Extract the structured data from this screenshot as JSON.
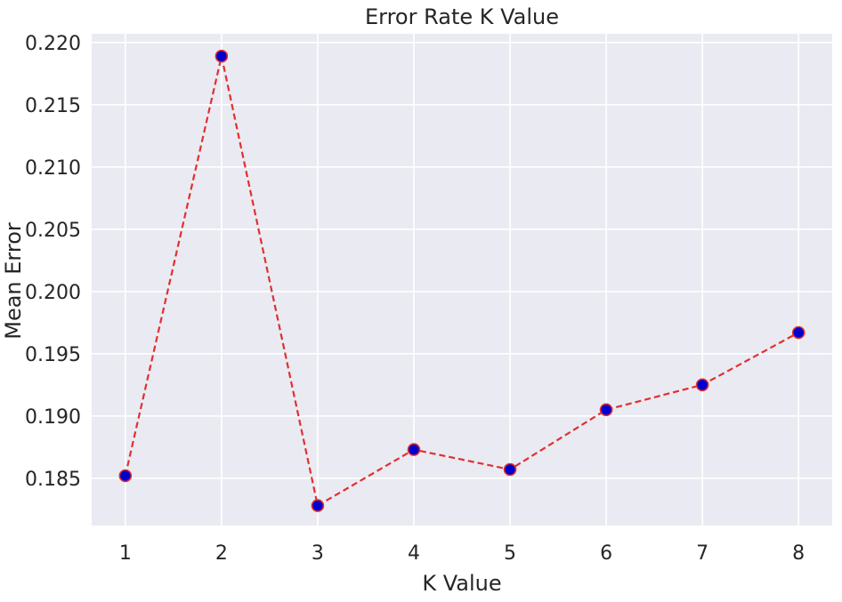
{
  "chart_data": {
    "type": "line",
    "title": "Error Rate K Value",
    "xlabel": "K Value",
    "ylabel": "Mean Error",
    "x": [
      1,
      2,
      3,
      4,
      5,
      6,
      7,
      8
    ],
    "y": [
      0.1852,
      0.2189,
      0.1828,
      0.1873,
      0.1857,
      0.1905,
      0.1925,
      0.1967
    ],
    "xticks": [
      "1",
      "2",
      "3",
      "4",
      "5",
      "6",
      "7",
      "8"
    ],
    "yticks": [
      "0.185",
      "0.190",
      "0.195",
      "0.200",
      "0.205",
      "0.210",
      "0.215",
      "0.220"
    ],
    "xlim": [
      0.65,
      8.35
    ],
    "ylim": [
      0.1812,
      0.2207
    ],
    "grid": true,
    "line_style": "dashed",
    "colors": {
      "background": "#eaeaf2",
      "grid": "#ffffff",
      "line": "#e03030",
      "marker_fill": "#0000cc",
      "marker_edge": "#e03030"
    }
  }
}
